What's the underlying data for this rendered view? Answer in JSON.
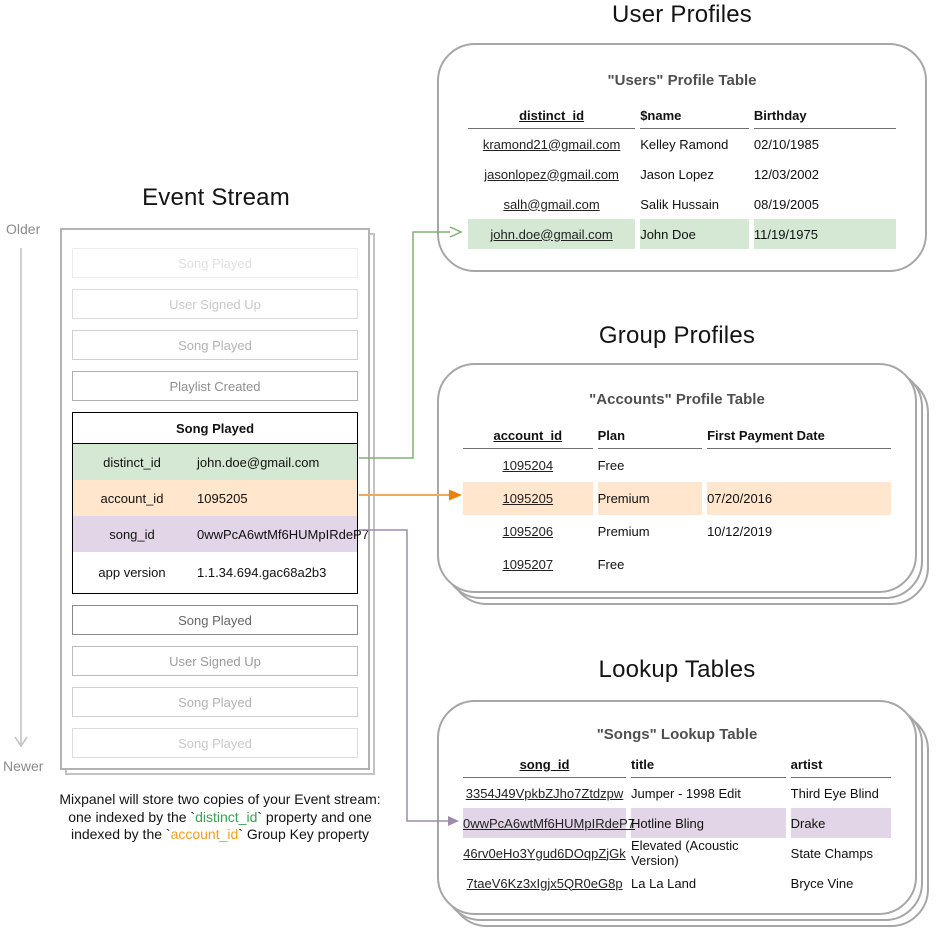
{
  "timeline": {
    "older": "Older",
    "newer": "Newer"
  },
  "event_stream": {
    "title": "Event Stream",
    "events_before": [
      {
        "label": "Song Played",
        "fade": 1
      },
      {
        "label": "User Signed Up",
        "fade": 2
      },
      {
        "label": "Song Played",
        "fade": 3
      },
      {
        "label": "Playlist Created",
        "fade": 4
      }
    ],
    "focused_event": {
      "title": "Song Played",
      "properties": [
        {
          "key": "distinct_id",
          "value": "john.doe@gmail.com",
          "highlight": "green"
        },
        {
          "key": "account_id",
          "value": "1095205",
          "highlight": "orange"
        },
        {
          "key": "song_id",
          "value": "0wwPcA6wtMf6HUMpIRdeP7",
          "highlight": "purple"
        },
        {
          "key": "app version",
          "value": "1.1.34.694.gac68a2b3",
          "highlight": "none"
        }
      ]
    },
    "events_after": [
      {
        "label": "Song Played",
        "fade": 6
      },
      {
        "label": "User Signed Up",
        "fade": 5
      },
      {
        "label": "Song Played",
        "fade": 3
      },
      {
        "label": "Song Played",
        "fade": 2
      }
    ]
  },
  "caption": {
    "line1": "Mixpanel will store two copies of your Event stream:",
    "line2": {
      "pre": "one indexed by the `",
      "code": "distinct_id",
      "post": "` property and one"
    },
    "line3": {
      "pre": "indexed by the `",
      "code": "account_id",
      "post": "` Group Key property"
    }
  },
  "user_profiles": {
    "section_title": "User Profiles",
    "table_title": "\"Users\" Profile Table",
    "columns": [
      "distinct_id",
      "$name",
      "Birthday"
    ],
    "rows": [
      [
        "kramond21@gmail.com",
        "Kelley Ramond",
        "02/10/1985"
      ],
      [
        "jasonlopez@gmail.com",
        "Jason Lopez",
        "12/03/2002"
      ],
      [
        "salh@gmail.com",
        "Salik Hussain",
        "08/19/2005"
      ],
      [
        "john.doe@gmail.com",
        "John Doe",
        "11/19/1975"
      ]
    ],
    "highlighted_row": 3,
    "highlight": "green"
  },
  "group_profiles": {
    "section_title": "Group Profiles",
    "table_title": "\"Accounts\" Profile Table",
    "columns": [
      "account_id",
      "Plan",
      "First Payment Date"
    ],
    "rows": [
      [
        "1095204",
        "Free",
        ""
      ],
      [
        "1095205",
        "Premium",
        "07/20/2016"
      ],
      [
        "1095206",
        "Premium",
        "10/12/2019"
      ],
      [
        "1095207",
        "Free",
        ""
      ]
    ],
    "highlighted_row": 1,
    "highlight": "orange"
  },
  "lookup_tables": {
    "section_title": "Lookup Tables",
    "table_title": "\"Songs\" Lookup Table",
    "columns": [
      "song_id",
      "title",
      "artist"
    ],
    "rows": [
      [
        "3354J49VpkbZJho7Ztdzpw",
        "Jumper - 1998 Edit",
        "Third Eye Blind"
      ],
      [
        "0wwPcA6wtMf6HUMpIRdeP7",
        "Hotline Bling",
        "Drake"
      ],
      [
        "46rv0eHo3Ygud6DOqpZjGk",
        "Elevated (Acoustic Version)",
        "State Champs"
      ],
      [
        "7taeV6Kz3xIgjx5QR0eG8p",
        "La La Land",
        "Bryce Vine"
      ]
    ],
    "highlighted_row": 1,
    "highlight": "purple"
  },
  "connectors": [
    {
      "from": "distinct_id",
      "to": "\"Users\" Profile Table row john.doe@gmail.com",
      "color": "green"
    },
    {
      "from": "account_id",
      "to": "\"Accounts\" Profile Table row 1095205",
      "color": "orange"
    },
    {
      "from": "song_id",
      "to": "\"Songs\" Lookup Table row 0wwPcA6wtMf6HUMpIRdeP7",
      "color": "purple"
    }
  ],
  "colors": {
    "green_fill": "#d5e8d4",
    "green_accent": "#7fb370",
    "green_text": "#3aa054",
    "orange_fill": "#ffe6cc",
    "orange_accent": "#e8820e",
    "orange_line": "#ecaa5b",
    "orange_text": "#f59d1e",
    "purple_fill": "#e1d5e7",
    "purple_accent": "#9e8cab"
  }
}
